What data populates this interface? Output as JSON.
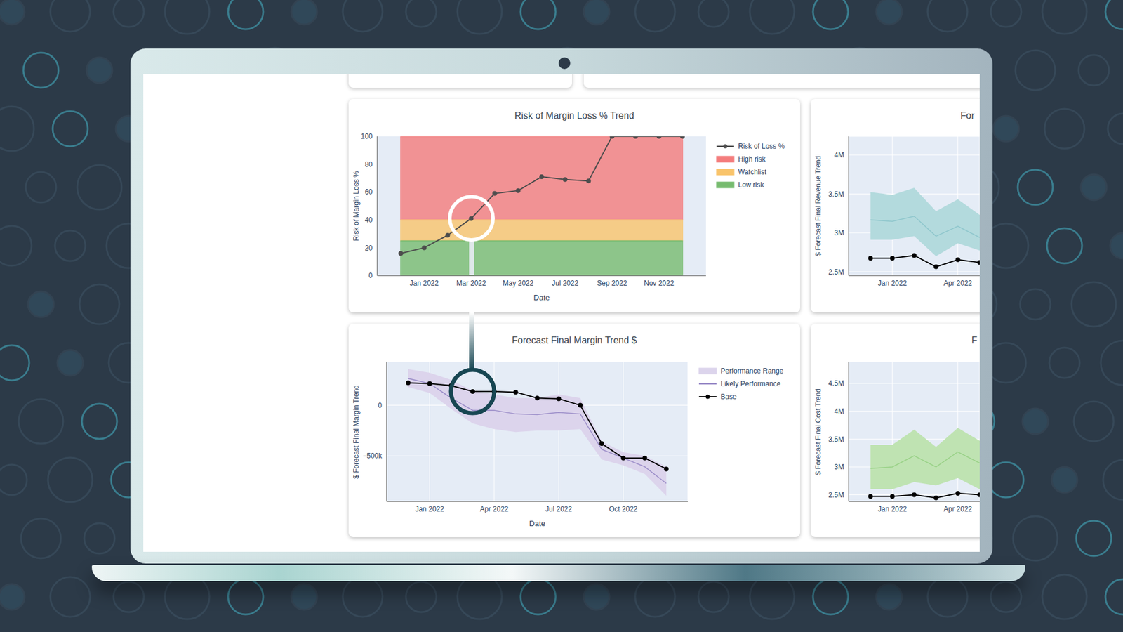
{
  "chart_data": [
    {
      "type": "line",
      "title": "Risk of Margin Loss % Trend",
      "x_label": "Date",
      "y_label": "Risk of Margin Loss %",
      "x": [
        "2021-12",
        "2022-01",
        "2022-02",
        "2022-03",
        "2022-04",
        "2022-05",
        "2022-06",
        "2022-07",
        "2022-08",
        "2022-09",
        "2022-10",
        "2022-11",
        "2022-12"
      ],
      "series": [
        {
          "name": "Risk of Loss %",
          "color": "#4d4d4d",
          "marker": "circle",
          "values": [
            16,
            20,
            29,
            41,
            59,
            61,
            71,
            69,
            68,
            100,
            100,
            100,
            100
          ]
        }
      ],
      "bands": [
        {
          "name": "High risk",
          "color": "#f47c7c",
          "range": [
            40,
            100
          ]
        },
        {
          "name": "Watchlist",
          "color": "#f9c46b",
          "range": [
            25,
            40
          ]
        },
        {
          "name": "Low risk",
          "color": "#77bb6f",
          "range": [
            0,
            25
          ]
        }
      ],
      "xlim": [
        "2021-11",
        "2023-01"
      ],
      "ylim": [
        0,
        100
      ],
      "xticks": [
        {
          "value": "2022-01",
          "label": "Jan 2022"
        },
        {
          "value": "2022-03",
          "label": "Mar 2022"
        },
        {
          "value": "2022-05",
          "label": "May 2022"
        },
        {
          "value": "2022-07",
          "label": "Jul 2022"
        },
        {
          "value": "2022-09",
          "label": "Sep 2022"
        },
        {
          "value": "2022-11",
          "label": "Nov 2022"
        }
      ],
      "yticks": [
        0,
        20,
        40,
        60,
        80,
        100
      ],
      "grid": false,
      "legend": "right"
    },
    {
      "type": "line",
      "title": "Forecast Final Margin Trend $",
      "x_label": "Date",
      "y_label": "$ Forecast Final Margin Trend",
      "x": [
        "2021-12",
        "2022-01",
        "2022-02",
        "2022-03",
        "2022-04",
        "2022-05",
        "2022-06",
        "2022-07",
        "2022-08",
        "2022-09",
        "2022-10",
        "2022-11",
        "2022-12"
      ],
      "series": [
        {
          "name": "Performance Range",
          "type": "range",
          "color": "#dcd4ec",
          "values": [
            [
              179000,
              357000
            ],
            [
              121000,
              321000
            ],
            [
              -36000,
              250000
            ],
            [
              -179000,
              143000
            ],
            [
              -236000,
              107000
            ],
            [
              -264000,
              71000
            ],
            [
              -250000,
              71000
            ],
            [
              -250000,
              107000
            ],
            [
              -236000,
              71000
            ],
            [
              -536000,
              -357000
            ],
            [
              -593000,
              -464000
            ],
            [
              -679000,
              -500000
            ],
            [
              -893000,
              -607000
            ]
          ]
        },
        {
          "name": "Likely Performance",
          "color": "#9a8cc8",
          "values": [
            264000,
            214000,
            71000,
            -50000,
            -50000,
            -86000,
            -93000,
            -71000,
            -86000,
            -436000,
            -521000,
            -607000,
            -771000
          ]
        },
        {
          "name": "Base",
          "color": "#000000",
          "marker": "circle",
          "values": [
            221000,
            214000,
            193000,
            136000,
            136000,
            129000,
            71000,
            64000,
            0,
            -379000,
            -521000,
            -521000,
            -629000
          ]
        }
      ],
      "xlim": [
        "2021-11",
        "2023-01"
      ],
      "ylim": [
        -950000,
        430000
      ],
      "xticks": [
        {
          "value": "2022-01",
          "label": "Jan 2022"
        },
        {
          "value": "2022-04",
          "label": "Apr 2022"
        },
        {
          "value": "2022-07",
          "label": "Jul 2022"
        },
        {
          "value": "2022-10",
          "label": "Oct 2022"
        }
      ],
      "yticks": [
        0,
        {
          "value": -500000,
          "label": "−500k"
        }
      ],
      "grid": true,
      "legend": "right"
    },
    {
      "type": "line",
      "title": "For",
      "y_label": "$ Forecast Final Revenue Trend",
      "x": [
        "2021-12",
        "2022-01",
        "2022-02",
        "2022-03",
        "2022-04",
        "2022-05"
      ],
      "series": [
        {
          "type": "range",
          "color": "#b3dadd",
          "values": [
            [
              2911000,
              3524000
            ],
            [
              2911000,
              3487000
            ],
            [
              2957000,
              3579000
            ],
            [
              2700000,
              3277000
            ],
            [
              2866000,
              3432000
            ],
            [
              2774000,
              3231000
            ]
          ]
        },
        {
          "color": "#8ec6cc",
          "values": [
            3167000,
            3148000,
            3213000,
            2957000,
            3085000,
            2940000
          ]
        },
        {
          "color": "#000000",
          "marker": "circle",
          "values": [
            2674000,
            2674000,
            2710000,
            2564000,
            2655000,
            2620000
          ]
        }
      ],
      "xlim": [
        "2021-11",
        "2022-05"
      ],
      "ylim": [
        2450000,
        4240000
      ],
      "xticks": [
        {
          "value": "2022-01",
          "label": "Jan 2022"
        },
        {
          "value": "2022-04",
          "label": "Apr 2022"
        }
      ],
      "yticks": [
        {
          "value": 2500000,
          "label": "2.5M"
        },
        {
          "value": 3000000,
          "label": "3M"
        },
        {
          "value": 3500000,
          "label": "3.5M"
        },
        {
          "value": 4000000,
          "label": "4M"
        }
      ],
      "grid": true
    },
    {
      "type": "line",
      "title": "F",
      "y_label": "$ Forecast Final Cost Trend",
      "x": [
        "2021-12",
        "2022-01",
        "2022-02",
        "2022-03",
        "2022-04",
        "2022-05"
      ],
      "series": [
        {
          "type": "range",
          "color": "#bfe3b2",
          "values": [
            [
              2600000,
              3400000
            ],
            [
              2600000,
              3400000
            ],
            [
              2730000,
              3670000
            ],
            [
              2670000,
              3360000
            ],
            [
              2800000,
              3700000
            ],
            [
              2600000,
              3470000
            ]
          ]
        },
        {
          "color": "#98d186",
          "values": [
            2973000,
            3000000,
            3200000,
            3000000,
            3270000,
            3070000
          ]
        },
        {
          "color": "#000000",
          "marker": "circle",
          "values": [
            2473000,
            2473000,
            2500000,
            2446000,
            2527000,
            2500000
          ]
        }
      ],
      "xlim": [
        "2021-11",
        "2022-05"
      ],
      "ylim": [
        2380000,
        4890000
      ],
      "xticks": [
        {
          "value": "2022-01",
          "label": "Jan 2022"
        },
        {
          "value": "2022-04",
          "label": "Apr 2022"
        }
      ],
      "yticks": [
        {
          "value": 2500000,
          "label": "2.5M"
        },
        {
          "value": 3000000,
          "label": "3M"
        },
        {
          "value": 3500000,
          "label": "3.5M"
        },
        {
          "value": 4000000,
          "label": "4M"
        },
        {
          "value": 4500000,
          "label": "4.5M"
        }
      ],
      "grid": true
    }
  ]
}
